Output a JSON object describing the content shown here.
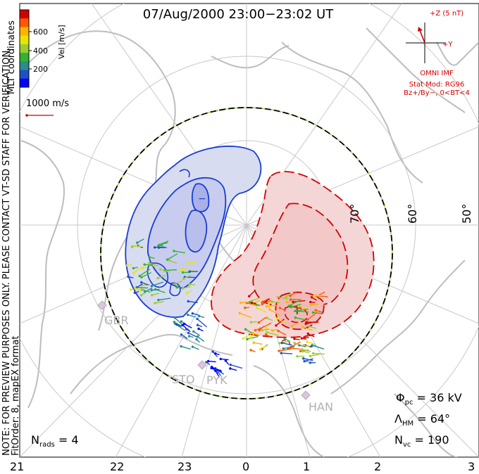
{
  "title": "07/Aug/2000 23:00−23:02 UT",
  "colorbar": {
    "label": "Vel [m/s]",
    "ticks": [
      "600",
      "400",
      "200"
    ],
    "colors": [
      "#d40000",
      "#ff5a00",
      "#ffb400",
      "#e6e600",
      "#9acd32",
      "#32b432",
      "#2a8c8c",
      "#1e50c8",
      "#0000ff"
    ]
  },
  "coords_label": "MLT coordinates",
  "scale_label": "1000 m/s",
  "note_line1": "NOTE: FOR PREVIEW PURPOSES ONLY. PLEASE CONTACT VT-SD STAFF FOR VERIFICATION.",
  "note_line2": "FitOrder: 8,  mapEX format",
  "imf": {
    "z_label": "+Z (5 nT)",
    "y_label": "+Y",
    "source": "OMNI IMF",
    "stat_mod": "Stat Mod: RG96",
    "condition": "Bz+/By−, 0<BT<4"
  },
  "latitude_labels": [
    "70°",
    "60°",
    "50°"
  ],
  "mlt_labels": [
    "21",
    "22",
    "23",
    "0",
    "1",
    "2",
    "3"
  ],
  "stations": [
    "GBR",
    "STO",
    "PYK",
    "HAN"
  ],
  "stats": {
    "phi_pc": "36 kV",
    "lambda_hm": "64°",
    "n_vc": "190",
    "n_rads": "4"
  }
}
